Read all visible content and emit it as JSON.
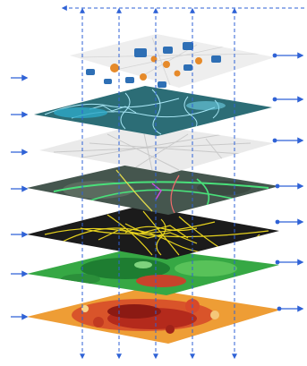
{
  "colors": {
    "arrow": "#2f62d6",
    "poi_layer": "#ececec",
    "hydro_layer": "#2d6e77",
    "street_layer": "#e6e6e6",
    "imagery_layer": "#41524a",
    "network_layer": "#1b1b1b",
    "landcover_layer": "#2f9e3f",
    "thematic_layer": "#ec9a34"
  },
  "layers": [
    {
      "name": "poi-layer",
      "icon": "briefcase-icon"
    },
    {
      "name": "hydrology-layer",
      "icon": "none"
    },
    {
      "name": "street-map-layer",
      "icon": "none"
    },
    {
      "name": "satellite-imagery-layer",
      "icon": "none"
    },
    {
      "name": "road-network-layer",
      "icon": "none"
    },
    {
      "name": "land-cover-layer",
      "icon": "none"
    },
    {
      "name": "thematic-choropleth-layer",
      "icon": "none"
    }
  ]
}
